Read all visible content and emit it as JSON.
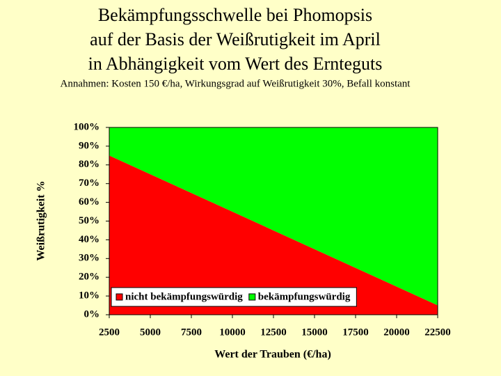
{
  "chart_data": {
    "type": "stacked_area",
    "title": [
      "Bekämpfungsschwelle bei Phomopsis",
      "auf der Basis der Weißrutigkeit im April",
      "in Abhängigkeit vom Wert des Ernteguts"
    ],
    "subtitle": "Annahmen: Kosten 150 €/ha, Wirkungsgrad auf  Weißrutigkeit 30%, Befall konstant",
    "x_label": "Wert der Trauben (€/ha)",
    "y_label": "Weißrutigkeit %",
    "x": [
      2500,
      5000,
      7500,
      10000,
      12500,
      15000,
      17500,
      20000,
      22500
    ],
    "series": [
      {
        "name": "nicht bekämpfungswürdig",
        "color": "#ff0000",
        "values": [
          85,
          75,
          65,
          55,
          45,
          35,
          25,
          15,
          5
        ]
      },
      {
        "name": "bekämpfungswürdig",
        "color": "#00ff00",
        "values": [
          15,
          25,
          35,
          45,
          55,
          65,
          75,
          85,
          95
        ]
      }
    ],
    "xlim": [
      2500,
      22500
    ],
    "xticks": [
      2500,
      5000,
      7500,
      10000,
      12500,
      15000,
      17500,
      20000,
      22500
    ],
    "ylim": [
      0,
      100
    ],
    "yticks": [
      {
        "value": 0,
        "label": "0%"
      },
      {
        "value": 10,
        "label": "10%"
      },
      {
        "value": 20,
        "label": "20%"
      },
      {
        "value": 30,
        "label": "30%"
      },
      {
        "value": 40,
        "label": "40%"
      },
      {
        "value": 50,
        "label": "50%"
      },
      {
        "value": 60,
        "label": "60%"
      },
      {
        "value": 70,
        "label": "70%"
      },
      {
        "value": 80,
        "label": "80%"
      },
      {
        "value": 90,
        "label": "90%"
      },
      {
        "value": 100,
        "label": "100%"
      }
    ],
    "legend": "lower center"
  }
}
